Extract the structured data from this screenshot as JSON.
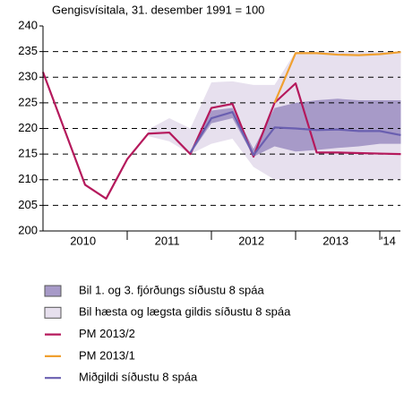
{
  "chart_data": {
    "type": "line",
    "title": "Gengisvísitala, 31. desember 1991 = 100",
    "categories": [
      null,
      null,
      null,
      null,
      null,
      null,
      null,
      null,
      null,
      null,
      null,
      null,
      null,
      null,
      null,
      null,
      null,
      null
    ],
    "year_labels": [
      "2010",
      "2011",
      "2012",
      "2013",
      "'14"
    ],
    "ylim": [
      200,
      240
    ],
    "yticks": [
      200,
      205,
      210,
      215,
      220,
      225,
      230,
      235,
      240
    ],
    "grid": true,
    "bands": [
      {
        "name": "Bil 1. og 3. fjórðungs síðustu 8 spáa",
        "color": "#a79ac8",
        "lower": [
          null,
          null,
          null,
          null,
          null,
          null,
          null,
          215,
          221,
          222,
          214.5,
          216.5,
          215.5,
          215.8,
          216.2,
          216.5,
          217,
          217
        ],
        "upper": [
          null,
          null,
          null,
          null,
          null,
          null,
          null,
          215,
          223.5,
          224,
          216,
          224,
          225,
          225.5,
          225.8,
          225.5,
          225.5,
          225.5
        ]
      },
      {
        "name": "Bil hæsta og lægsta gildis síðustu 8 spáa",
        "color": "#e7e0ee",
        "lower": [
          null,
          null,
          null,
          null,
          null,
          218.5,
          217.5,
          215,
          217,
          218,
          212.5,
          210,
          210,
          210,
          210,
          210,
          210,
          210
        ],
        "upper": [
          null,
          null,
          null,
          null,
          null,
          219.8,
          222,
          220,
          229,
          229.2,
          228.5,
          228.5,
          235,
          235,
          235,
          235,
          235,
          235
        ]
      }
    ],
    "series": [
      {
        "name": "PM 2013/2",
        "color": "#b5195c",
        "values": [
          231,
          220,
          209,
          206.3,
          214,
          219,
          219.2,
          215,
          224,
          224.8,
          214.5,
          225,
          228.8,
          215.3,
          215.3,
          215.2,
          215.1,
          215
        ]
      },
      {
        "name": "PM 2013/1",
        "color": "#f0a030",
        "values": [
          null,
          null,
          null,
          null,
          null,
          null,
          null,
          null,
          null,
          null,
          null,
          225,
          234.7,
          234.7,
          234.4,
          234.3,
          234.5,
          234.9
        ]
      },
      {
        "name": "Miðgildi síðustu 8 spáa",
        "color": "#6a5fb0",
        "values": [
          null,
          null,
          null,
          null,
          null,
          null,
          null,
          215.3,
          222,
          223.2,
          214.8,
          220.2,
          220,
          219.7,
          219.8,
          219.5,
          219.5,
          218.7
        ]
      }
    ]
  }
}
